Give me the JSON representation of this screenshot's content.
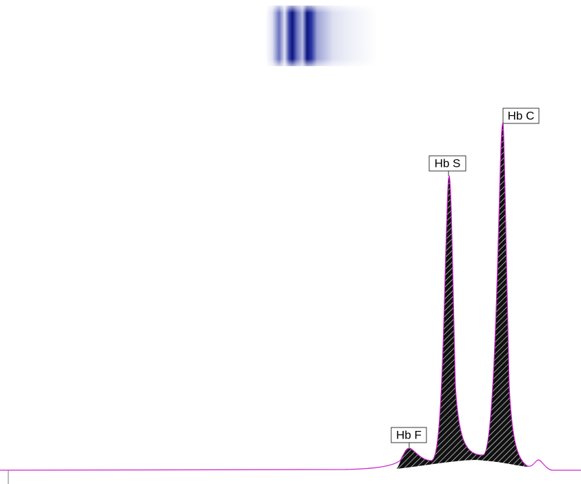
{
  "peaks": [
    {
      "label": "Hb F"
    },
    {
      "label": "Hb S"
    },
    {
      "label": "Hb C"
    }
  ]
}
